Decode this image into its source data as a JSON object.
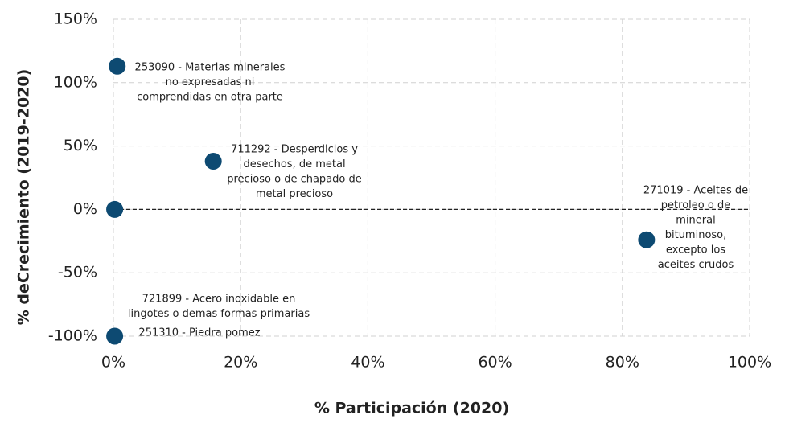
{
  "chart_data": {
    "type": "scatter",
    "xlabel": "% Participación (2020)",
    "ylabel": "% deCrecimiento (2019-2020)",
    "color": "#0d4a72",
    "grid": true,
    "xlim": [
      0,
      100
    ],
    "ylim": [
      -100,
      150
    ],
    "xticks": [
      {
        "value": 0,
        "label": "0%"
      },
      {
        "value": 20,
        "label": "20%"
      },
      {
        "value": 40,
        "label": "40%"
      },
      {
        "value": 60,
        "label": "60%"
      },
      {
        "value": 80,
        "label": "80%"
      },
      {
        "value": 100,
        "label": "100%"
      }
    ],
    "yticks": [
      {
        "value": -100,
        "label": "-100%"
      },
      {
        "value": -50,
        "label": "-50%"
      },
      {
        "value": 0,
        "label": "0%"
      },
      {
        "value": 50,
        "label": "50%"
      },
      {
        "value": 100,
        "label": "100%"
      },
      {
        "value": 150,
        "label": "150%"
      }
    ],
    "x": [
      0.6,
      15.7,
      0.2,
      83.8,
      0.2
    ],
    "values": [
      113,
      38,
      0,
      -24,
      -100
    ],
    "annotations": [
      [
        "253090 - Materias minerales",
        "no expresadas ni",
        "comprendidas en otra parte"
      ],
      [
        "711292 - Desperdicios y",
        "desechos, de metal",
        "precioso o de chapado de",
        "metal precioso"
      ],
      [
        "721899 - Acero inoxidable en",
        "lingotes o demas formas primarias"
      ],
      [
        "271019 - Aceites de",
        "petroleo o de",
        "mineral",
        "bituminoso,",
        "excepto los",
        "aceites crudos"
      ],
      [
        "251310 - Piedra pomez"
      ]
    ]
  }
}
